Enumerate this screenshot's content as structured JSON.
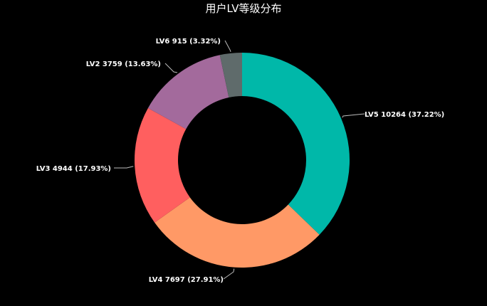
{
  "chart_data": {
    "type": "pie",
    "variant": "donut",
    "title": "用户LV等级分布",
    "legend": "none",
    "background": "#000000",
    "label_format": "{name} {value} ({percent})",
    "slices": [
      {
        "name": "LV5",
        "value": 10264,
        "percent": "37.22%",
        "color": "#00b8a9"
      },
      {
        "name": "LV4",
        "value": 7697,
        "percent": "27.91%",
        "color": "#ff9966"
      },
      {
        "name": "LV3",
        "value": 4944,
        "percent": "17.93%",
        "color": "#ff5f5f"
      },
      {
        "name": "LV2",
        "value": 3759,
        "percent": "13.63%",
        "color": "#a36a9c"
      },
      {
        "name": "LV6",
        "value": 915,
        "percent": "3.32%",
        "color": "#5f6b6b"
      }
    ]
  }
}
